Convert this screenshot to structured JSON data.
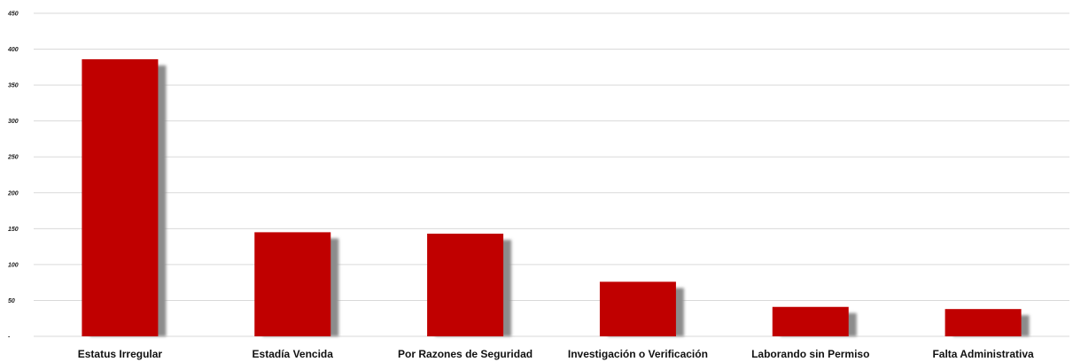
{
  "chart_data": {
    "type": "bar",
    "categories": [
      "Estatus Irregular",
      "Estadía Vencida",
      "Por Razones de Seguridad",
      "Investigación o Verificación",
      "Laborando sin Permiso",
      "Falta Administrativa"
    ],
    "values": [
      386,
      145,
      143,
      76,
      41,
      38
    ],
    "ylim": [
      0,
      450
    ],
    "yticks": [
      0,
      50,
      100,
      150,
      200,
      250,
      300,
      350,
      400,
      450
    ],
    "ytick_labels": [
      "-",
      "50",
      "100",
      "150",
      "200",
      "250",
      "300",
      "350",
      "400",
      "450"
    ],
    "grid": true,
    "bar_color": "#c00000",
    "shadow_color": "#8c8c8c",
    "grid_color": "#d9d9d9"
  }
}
